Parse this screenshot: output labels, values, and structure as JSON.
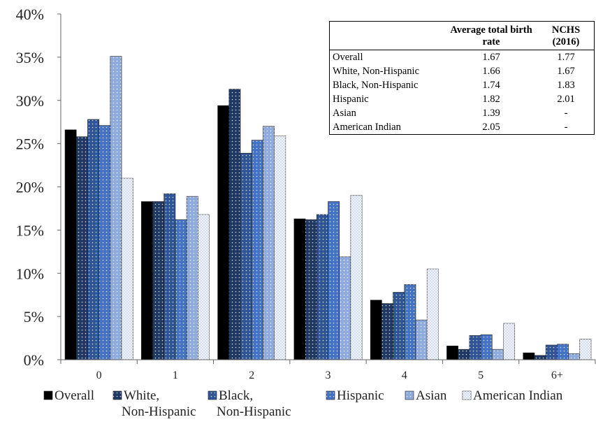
{
  "chart_data": {
    "type": "bar",
    "title": "",
    "xlabel": "",
    "ylabel": "",
    "categories": [
      "0",
      "1",
      "2",
      "3",
      "4",
      "5",
      "6+"
    ],
    "ylim": [
      0,
      40
    ],
    "yticks": [
      "0%",
      "5%",
      "10%",
      "15%",
      "20%",
      "25%",
      "30%",
      "35%",
      "40%"
    ],
    "grid": false,
    "legend_position": "bottom",
    "series": [
      {
        "name": "Overall",
        "legend_lines": [
          "Overall"
        ],
        "color": "#000000",
        "pattern": "solid",
        "values": [
          26.6,
          18.3,
          29.4,
          16.3,
          6.9,
          1.6,
          0.8
        ]
      },
      {
        "name": "White, Non-Hispanic",
        "legend_lines": [
          "White,",
          "Non-Hispanic"
        ],
        "color": "#1f3864",
        "pattern": "dots",
        "values": [
          25.8,
          18.3,
          31.3,
          16.2,
          6.5,
          1.2,
          0.5
        ]
      },
      {
        "name": "Black, Non-Hispanic",
        "legend_lines": [
          "Black,",
          "Non-Hispanic"
        ],
        "color": "#2f5597",
        "pattern": "dots",
        "values": [
          27.8,
          19.2,
          23.9,
          16.8,
          7.8,
          2.8,
          1.7
        ]
      },
      {
        "name": "Hispanic",
        "legend_lines": [
          "Hispanic"
        ],
        "color": "#4472c4",
        "pattern": "dots",
        "values": [
          27.1,
          16.2,
          25.4,
          18.3,
          8.7,
          2.9,
          1.8
        ]
      },
      {
        "name": "Asian",
        "legend_lines": [
          "Asian"
        ],
        "color": "#8faadc",
        "pattern": "dots",
        "values": [
          35.1,
          18.9,
          27.0,
          11.9,
          4.6,
          1.2,
          0.7
        ]
      },
      {
        "name": "American Indian",
        "legend_lines": [
          "American Indian"
        ],
        "color": "#c9d5ea",
        "pattern": "crosshatch",
        "values": [
          21.0,
          16.8,
          25.9,
          19.0,
          10.5,
          4.2,
          2.4
        ]
      }
    ],
    "table": {
      "headers": [
        "",
        "Average total birth rate",
        "NCHS (2016)"
      ],
      "rows": [
        [
          "Overall",
          "1.67",
          "1.77"
        ],
        [
          "White, Non-Hispanic",
          "1.66",
          "1.67"
        ],
        [
          "Black, Non-Hispanic",
          "1.74",
          "1.83"
        ],
        [
          "Hispanic",
          "1.82",
          "2.01"
        ],
        [
          "Asian",
          "1.39",
          "-"
        ],
        [
          "American Indian",
          "2.05",
          "-"
        ]
      ]
    }
  }
}
